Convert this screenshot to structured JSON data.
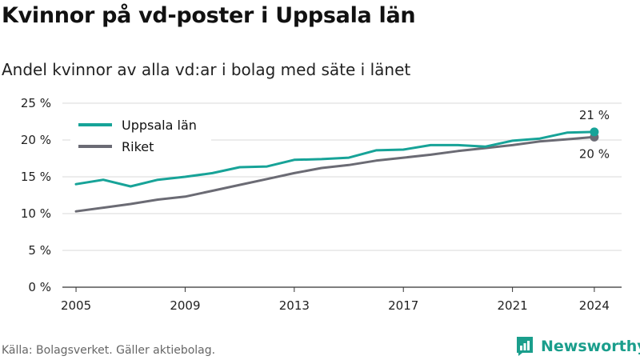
{
  "title": "Kvinnor på vd-poster i Uppsala län",
  "subtitle": "Andel kvinnor av alla vd:ar i bolag med säte i länet",
  "source": "Källa: Bolagsverket. Gäller aktiebolag.",
  "brand": {
    "name": "Newsworthy",
    "color": "#1a9e8c"
  },
  "chart_data": {
    "type": "line",
    "title": "Kvinnor på vd-poster i Uppsala län",
    "subtitle": "Andel kvinnor av alla vd:ar i bolag med säte i länet",
    "xlabel": "",
    "ylabel": "",
    "x": [
      2005,
      2006,
      2007,
      2008,
      2009,
      2010,
      2011,
      2012,
      2013,
      2014,
      2015,
      2016,
      2017,
      2018,
      2019,
      2020,
      2021,
      2022,
      2023,
      2024
    ],
    "xticks": [
      2005,
      2009,
      2013,
      2017,
      2021,
      2024
    ],
    "xtick_labels": [
      "2005",
      "2009",
      "2013",
      "2017",
      "2021",
      "2024"
    ],
    "ylim": [
      0,
      25
    ],
    "yticks": [
      0,
      5,
      10,
      15,
      20,
      25
    ],
    "ytick_labels": [
      "0 %",
      "5 %",
      "10 %",
      "15 %",
      "20 %",
      "25 %"
    ],
    "grid": true,
    "legend_position": "top-left",
    "series": [
      {
        "name": "Uppsala län",
        "color": "#17a398",
        "values": [
          14.0,
          14.6,
          13.7,
          14.6,
          15.0,
          15.5,
          16.3,
          16.4,
          17.3,
          17.4,
          17.6,
          18.6,
          18.7,
          19.3,
          19.3,
          19.1,
          19.9,
          20.2,
          21.0,
          21.1
        ],
        "end_label": "21 %"
      },
      {
        "name": "Riket",
        "color": "#6b6b74",
        "values": [
          10.3,
          10.8,
          11.3,
          11.9,
          12.3,
          13.1,
          13.9,
          14.7,
          15.5,
          16.2,
          16.6,
          17.2,
          17.6,
          18.0,
          18.5,
          18.9,
          19.3,
          19.8,
          20.1,
          20.4
        ],
        "end_label": "20 %"
      }
    ]
  }
}
